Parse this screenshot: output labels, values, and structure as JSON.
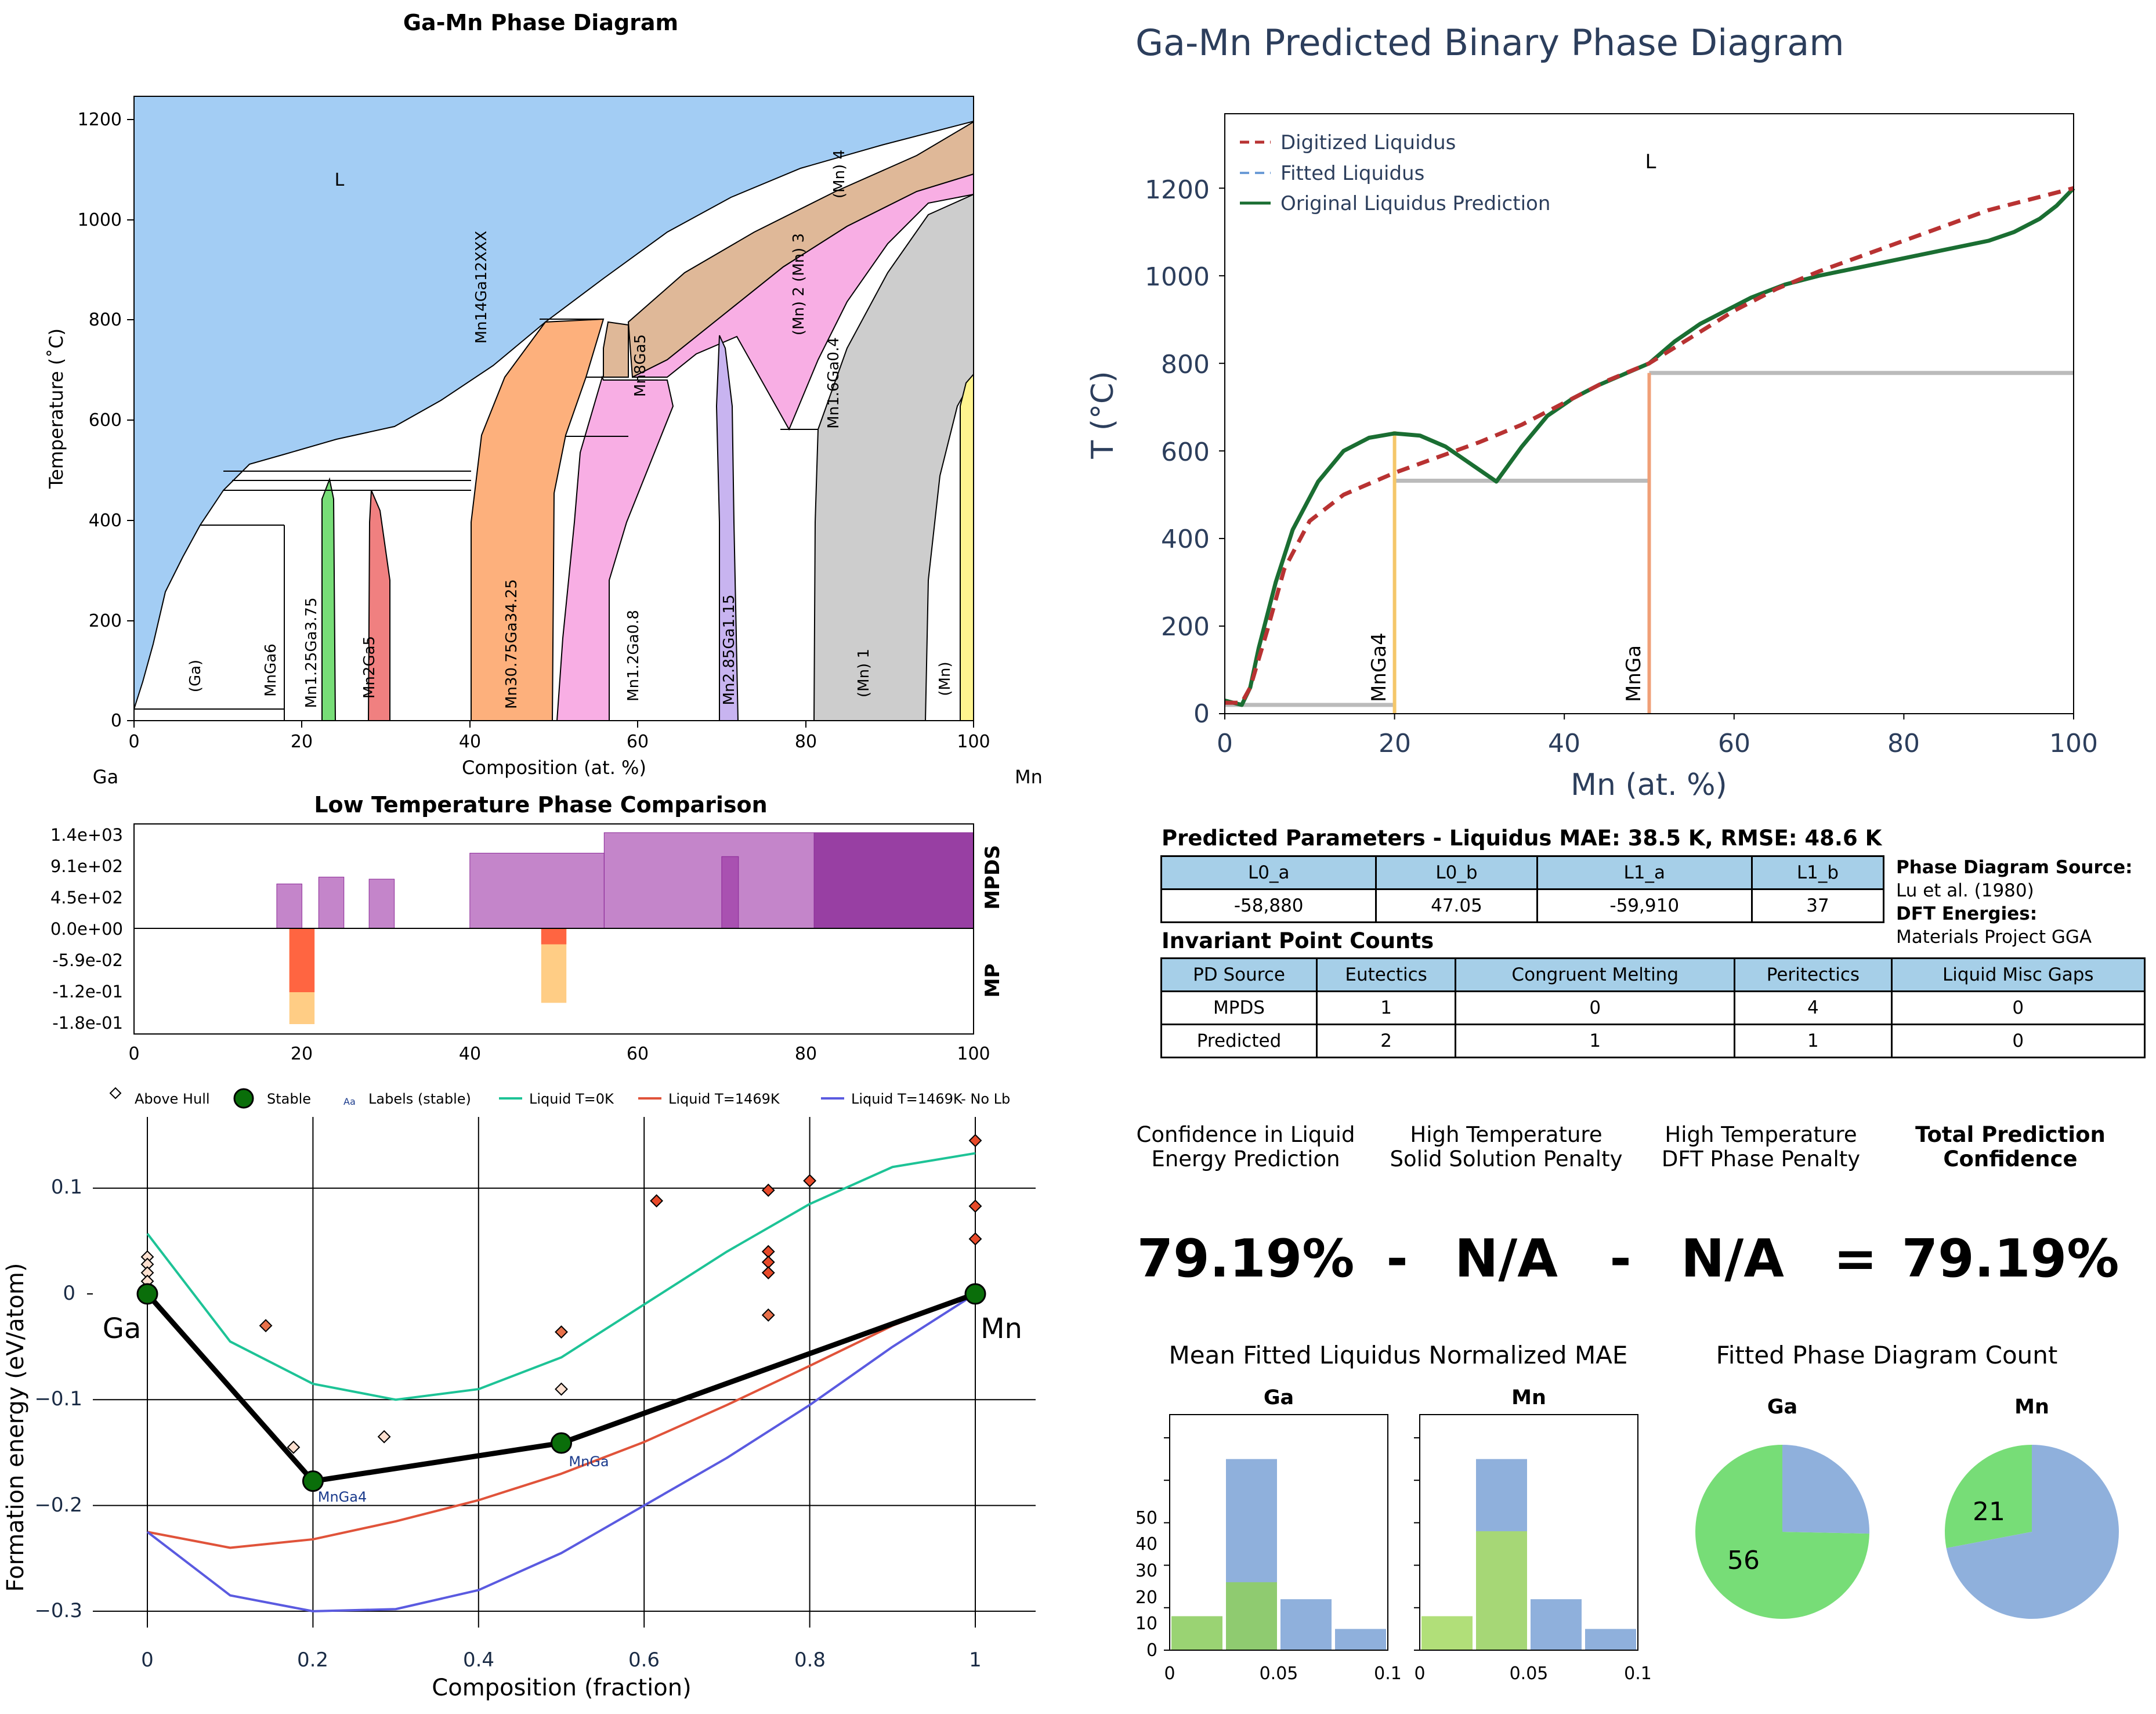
{
  "phase_diagram": {
    "title": "Ga-Mn Phase Diagram",
    "xlabel": "Composition (at. %)",
    "ylabel": "Temperature (˚C)",
    "left_element": "Ga",
    "right_element": "Mn",
    "xticks": [
      "0",
      "20",
      "40",
      "60",
      "80",
      "100"
    ],
    "yticks": [
      "0",
      "200",
      "400",
      "600",
      "800",
      "1000",
      "1200"
    ],
    "labels": {
      "L": "L",
      "ga": "(Ga)",
      "mnga6": "MnGa6",
      "mn125": "Mn1.25Ga3.75",
      "mn2ga5": "Mn2Ga5",
      "mn3075": "Mn30.75Ga34.25",
      "mn12": "Mn1.2Ga0.8",
      "mn285": "Mn2.85Ga1.15",
      "mn1": "(Mn) 1",
      "mn": "(Mn)",
      "mn14": "Mn14Ga12XXX",
      "mn8ga5": "Mn8Ga5",
      "mn16": "Mn1.6Ga0.4",
      "mn23": "(Mn) 2 (Mn) 3",
      "mn4": "(Mn) 4"
    },
    "colors": {
      "liquid": "#a3cdf4",
      "green": "#77dd77",
      "red": "#f08080",
      "orange": "#fdb07c",
      "pink": "#f8aee4",
      "lavender": "#c8b4f0",
      "tan": "#dfb898",
      "gray": "#cdcdcd",
      "yellow": "#fff48f"
    }
  },
  "comparison": {
    "title": "Low Temperature Phase Comparison",
    "label_top": "MPDS",
    "label_bottom": "MP",
    "yticks": [
      "1.4e+03",
      "9.1e+02",
      "4.5e+02",
      "0.0e+00",
      "-5.9e-02",
      "-1.2e-01",
      "-1.8e-01"
    ],
    "xticks": [
      "0",
      "20",
      "40",
      "60",
      "80",
      "100"
    ]
  },
  "hull": {
    "xlabel": "Composition (fraction)",
    "ylabel": "Formation energy (eV/atom)",
    "xticks": [
      "0",
      "0.2",
      "0.4",
      "0.6",
      "0.8",
      "1"
    ],
    "yticks": [
      "0.1",
      "0",
      "−0.1",
      "−0.2",
      "−0.3"
    ],
    "legend": [
      "Above Hull",
      "Stable",
      "Labels (stable)",
      "Liquid T=0K",
      "Liquid T=1469K",
      "Liquid T=1469K- No Lb"
    ],
    "legend_aa": "Aa",
    "element_left": "Ga",
    "element_right": "Mn",
    "label_mnga4": "MnGa4",
    "label_mnga": "MnGa"
  },
  "predicted": {
    "title": "Ga-Mn Predicted Binary Phase Diagram",
    "xlabel": "Mn (at. %)",
    "ylabel": "T (°C)",
    "xticks": [
      "0",
      "20",
      "40",
      "60",
      "80",
      "100"
    ],
    "yticks": [
      "0",
      "200",
      "400",
      "600",
      "800",
      "1000",
      "1200"
    ],
    "legend": [
      "Digitized Liquidus",
      "Fitted Liquidus",
      "Original Liquidus Prediction"
    ],
    "L": "L",
    "mnga4": "MnGa4",
    "mnga": "MnGa"
  },
  "params": {
    "title": "Predicted Parameters - Liquidus MAE: 38.5 K, RMSE: 48.6 K",
    "headers": [
      "L0_a",
      "L0_b",
      "L1_a",
      "L1_b"
    ],
    "values": [
      "-58,880",
      "47.05",
      "-59,910",
      "37"
    ]
  },
  "source": {
    "pd_label": "Phase Diagram Source:",
    "pd_value": "Lu et al. (1980)",
    "dft_label": "DFT Energies:",
    "dft_value": "Materials Project GGA"
  },
  "invariants": {
    "title": "Invariant Point Counts",
    "headers": [
      "PD Source",
      "Eutectics",
      "Congruent Melting",
      "Peritectics",
      "Liquid Misc Gaps"
    ],
    "rows": [
      [
        "MPDS",
        "1",
        "0",
        "4",
        "0"
      ],
      [
        "Predicted",
        "2",
        "1",
        "1",
        "0"
      ]
    ]
  },
  "confidence": {
    "h1a": "Confidence in Liquid",
    "h1b": "Energy Prediction",
    "h2a": "High Temperature",
    "h2b": "Solid Solution Penalty",
    "h3a": "High Temperature",
    "h3b": "DFT Phase Penalty",
    "h4a": "Total Prediction",
    "h4b": "Confidence",
    "v1": "79.19%",
    "op1": "-",
    "v2": "N/A",
    "op2": "-",
    "v3": "N/A",
    "op3": "=",
    "v4": "79.19%"
  },
  "mae": {
    "title": "Mean Fitted Liquidus Normalized MAE",
    "panel1": "Ga",
    "panel2": "Mn",
    "yticks": [
      "0",
      "10",
      "20",
      "30",
      "40",
      "50"
    ],
    "xticks": [
      "0",
      "0.05",
      "0.1"
    ]
  },
  "count": {
    "title": "Fitted Phase Diagram Count",
    "panel1": "Ga",
    "panel2": "Mn",
    "ga_value": "56",
    "mn_value": "21"
  },
  "chart_data": [
    {
      "type": "area",
      "title": "Ga-Mn Phase Diagram",
      "xlabel": "Composition (at. %)",
      "ylabel": "Temperature (˚C)",
      "xlim": [
        0,
        100
      ],
      "ylim": [
        0,
        1250
      ],
      "liquidus": [
        [
          0,
          25
        ],
        [
          3,
          80
        ],
        [
          6,
          200
        ],
        [
          8,
          300
        ],
        [
          10,
          360
        ],
        [
          13,
          415
        ],
        [
          17,
          460
        ],
        [
          22,
          475
        ],
        [
          30,
          490
        ],
        [
          40,
          560
        ],
        [
          50,
          680
        ],
        [
          60,
          800
        ],
        [
          70,
          900
        ],
        [
          80,
          990
        ],
        [
          90,
          1080
        ],
        [
          100,
          1180
        ]
      ],
      "solid_phases": [
        {
          "name": "MnGa6",
          "x": 18,
          "tmax": 390
        },
        {
          "name": "Mn1.25Ga3.75",
          "x": [
            22.5,
            24
          ],
          "tmax": 480
        },
        {
          "name": "Mn2Ga5",
          "x": [
            28.5,
            30.5
          ],
          "tmax": 460
        },
        {
          "name": "Mn30.75Ga34.25",
          "x": [
            40,
            50
          ],
          "tmax": 800
        },
        {
          "name": "Mn1.2Ga0.8",
          "x": [
            56,
            64
          ],
          "tmax": 800
        },
        {
          "name": "Mn2.85Ga1.15",
          "x": [
            70,
            72
          ],
          "tmax": 770
        },
        {
          "name": "(Mn) 1",
          "x": [
            81,
            91
          ],
          "tmax": 1050
        },
        {
          "name": "(Mn)",
          "x": [
            98,
            100
          ],
          "tmax": 700
        }
      ]
    },
    {
      "type": "bar",
      "title": "Low Temperature Phase Comparison",
      "series": [
        {
          "name": "MPDS",
          "bars": [
            [
              17,
              20,
              650
            ],
            [
              22,
              25,
              750
            ],
            [
              28,
              31,
              720
            ],
            [
              40,
              56,
              1100
            ],
            [
              56,
              100,
              1400
            ],
            [
              70,
              72,
              1050
            ],
            [
              81,
              100,
              1400
            ]
          ]
        },
        {
          "name": "MP",
          "bars": [
            [
              18.5,
              21.5,
              -0.12
            ],
            [
              18.5,
              21.5,
              -0.18
            ],
            [
              48.5,
              51.5,
              -0.03
            ],
            [
              48.5,
              51.5,
              -0.14
            ]
          ]
        }
      ]
    },
    {
      "type": "scatter",
      "xlabel": "Composition (fraction)",
      "ylabel": "Formation energy (eV/atom)",
      "xlim": [
        -0.05,
        1.07
      ],
      "ylim": [
        -0.305,
        0.15
      ],
      "stable": [
        [
          0,
          0
        ],
        [
          0.2,
          -0.177
        ],
        [
          0.5,
          -0.141
        ],
        [
          1,
          0
        ]
      ],
      "above_hull": [
        [
          0,
          0.035
        ],
        [
          0,
          0.028
        ],
        [
          0,
          0.02
        ],
        [
          0,
          0.012
        ],
        [
          0.143,
          -0.03
        ],
        [
          0.1765,
          -0.145
        ],
        [
          0.286,
          -0.135
        ],
        [
          0.5,
          -0.036
        ],
        [
          0.5,
          -0.09
        ],
        [
          0.615,
          0.088
        ],
        [
          0.75,
          0.098
        ],
        [
          0.75,
          0.04
        ],
        [
          0.75,
          0.03
        ],
        [
          0.75,
          0.02
        ],
        [
          0.75,
          -0.02
        ],
        [
          0.8,
          0.107
        ],
        [
          1,
          0.145
        ],
        [
          1,
          0.083
        ],
        [
          1,
          0.052
        ]
      ],
      "series": [
        {
          "name": "Liquid T=0K",
          "x": [
            0,
            0.1,
            0.2,
            0.3,
            0.4,
            0.5,
            0.6,
            0.7,
            0.8,
            0.9,
            1
          ],
          "y": [
            0.057,
            -0.045,
            -0.085,
            -0.1,
            -0.09,
            -0.06,
            -0.01,
            0.04,
            0.085,
            0.12,
            0.133
          ]
        },
        {
          "name": "Liquid T=1469K",
          "x": [
            0,
            0.1,
            0.2,
            0.3,
            0.4,
            0.5,
            0.6,
            0.7,
            0.8,
            0.9,
            1
          ],
          "y": [
            -0.225,
            -0.24,
            -0.232,
            -0.215,
            -0.195,
            -0.17,
            -0.14,
            -0.105,
            -0.068,
            -0.03,
            0
          ]
        },
        {
          "name": "Liquid T=1469K- No Lb",
          "x": [
            0,
            0.1,
            0.2,
            0.3,
            0.4,
            0.5,
            0.6,
            0.7,
            0.8,
            0.9,
            1
          ],
          "y": [
            -0.225,
            -0.285,
            -0.3,
            -0.298,
            -0.28,
            -0.245,
            -0.2,
            -0.155,
            -0.105,
            -0.05,
            0
          ]
        }
      ]
    },
    {
      "type": "line",
      "title": "Ga-Mn Predicted Binary Phase Diagram",
      "xlabel": "Mn (at. %)",
      "ylabel": "T (°C)",
      "xlim": [
        0,
        100
      ],
      "ylim": [
        0,
        1370
      ],
      "series": [
        {
          "name": "Digitized Liquidus",
          "x": [
            0,
            2,
            3,
            5,
            7,
            10,
            14,
            20,
            25,
            30,
            35,
            40,
            45,
            50,
            55,
            60,
            65,
            70,
            80,
            90,
            100
          ],
          "y": [
            25,
            25,
            60,
            190,
            330,
            440,
            500,
            550,
            585,
            620,
            660,
            710,
            760,
            800,
            860,
            920,
            970,
            1010,
            1080,
            1150,
            1200
          ]
        },
        {
          "name": "Original Liquidus Prediction",
          "x": [
            0,
            2,
            3,
            4,
            6,
            8,
            11,
            14,
            17,
            20,
            23,
            26,
            29,
            32,
            35,
            38,
            41,
            44,
            47,
            50,
            53,
            56,
            59,
            62,
            66,
            70,
            75,
            80,
            85,
            90,
            93,
            96,
            98,
            100
          ],
          "y": [
            30,
            20,
            60,
            150,
            300,
            420,
            530,
            600,
            630,
            640,
            635,
            610,
            570,
            530,
            610,
            680,
            720,
            750,
            775,
            800,
            850,
            890,
            920,
            950,
            980,
            1000,
            1020,
            1040,
            1060,
            1080,
            1100,
            1130,
            1160,
            1200
          ]
        }
      ]
    },
    {
      "type": "bar",
      "title": "Mean Fitted Liquidus Normalized MAE",
      "panels": [
        {
          "name": "Ga",
          "bins": [
            [
              0,
              0.025
            ],
            [
              0.025,
              0.05
            ],
            [
              0.05,
              0.075
            ],
            [
              0.075,
              0.1
            ]
          ],
          "blue": [
            0,
            45,
            12,
            5
          ],
          "green": [
            8,
            16,
            0,
            0
          ]
        },
        {
          "name": "Mn",
          "bins": [
            [
              0,
              0.025
            ],
            [
              0.025,
              0.05
            ],
            [
              0.05,
              0.075
            ],
            [
              0.075,
              0.1
            ]
          ],
          "blue": [
            0,
            45,
            12,
            5
          ],
          "green": [
            8,
            28,
            0,
            0
          ]
        }
      ]
    },
    {
      "type": "pie",
      "title": "Fitted Phase Diagram Count",
      "panels": [
        {
          "name": "Ga",
          "values": [
            56,
            19
          ],
          "labels": [
            "56",
            ""
          ]
        },
        {
          "name": "Mn",
          "values": [
            21,
            54
          ],
          "labels": [
            "21",
            ""
          ]
        }
      ]
    }
  ]
}
